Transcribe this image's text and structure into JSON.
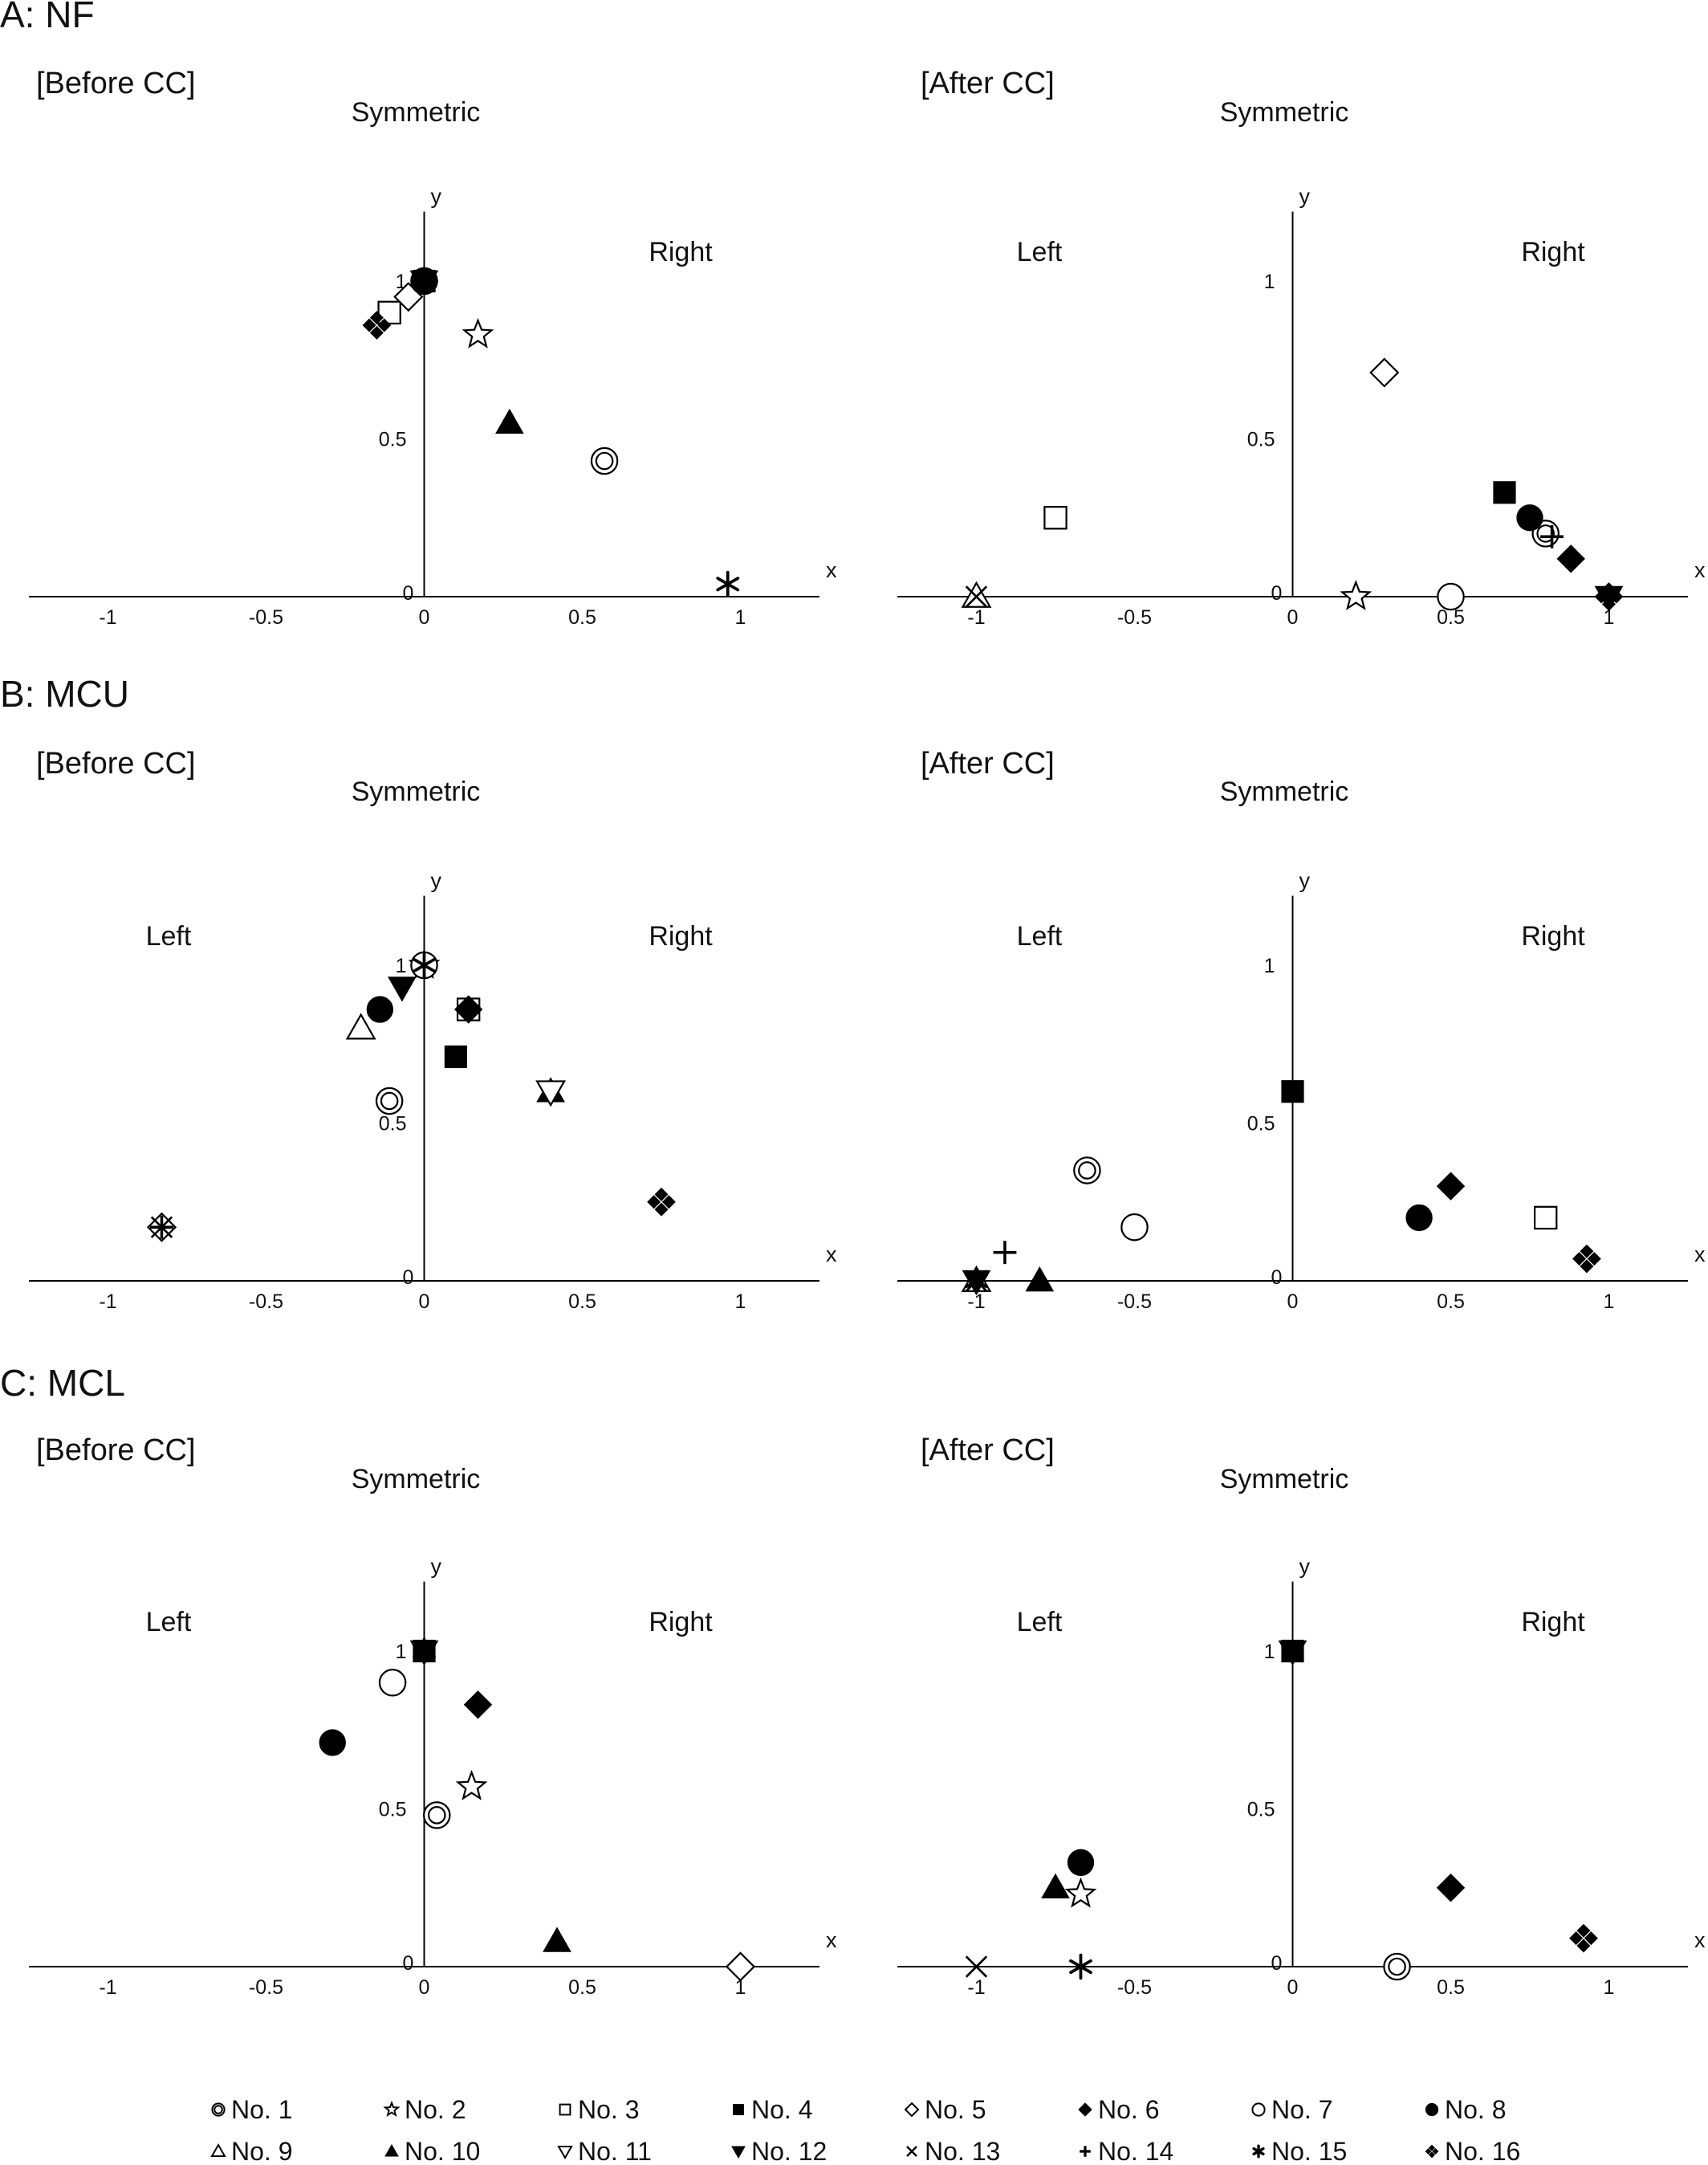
{
  "figure": {
    "sections": [
      {
        "title": "A: NF",
        "before_label": "[Before CC]",
        "after_label": "[After CC]"
      },
      {
        "title": "B: MCU",
        "before_label": "[Before CC]",
        "after_label": "[After CC]"
      },
      {
        "title": "C: MCL",
        "before_label": "[Before CC]",
        "after_label": "[After CC]"
      }
    ]
  },
  "legend": {
    "items": [
      {
        "label": "No. 1",
        "symbol": "double-circle"
      },
      {
        "label": "No. 2",
        "symbol": "open-star"
      },
      {
        "label": "No. 3",
        "symbol": "open-square"
      },
      {
        "label": "No. 4",
        "symbol": "filled-square"
      },
      {
        "label": "No. 5",
        "symbol": "open-diamond"
      },
      {
        "label": "No. 6",
        "symbol": "filled-diamond"
      },
      {
        "label": "No. 7",
        "symbol": "open-circle"
      },
      {
        "label": "No. 8",
        "symbol": "filled-circle"
      },
      {
        "label": "No. 9",
        "symbol": "open-triangle"
      },
      {
        "label": "No. 10",
        "symbol": "filled-triangle"
      },
      {
        "label": "No. 11",
        "symbol": "open-triangle-down"
      },
      {
        "label": "No. 12",
        "symbol": "filled-triangle-down"
      },
      {
        "label": "No. 13",
        "symbol": "x-cross"
      },
      {
        "label": "No. 14",
        "symbol": "plus"
      },
      {
        "label": "No. 15",
        "symbol": "asterisk"
      },
      {
        "label": "No. 16",
        "symbol": "four-diamonds"
      }
    ]
  },
  "chart_data": [
    {
      "type": "scatter",
      "section": "A: NF",
      "panel": "[Before CC]",
      "xlabel": "x",
      "ylabel": "y",
      "xlim": [
        -1.25,
        1.25
      ],
      "ylim": [
        0,
        1.25
      ],
      "x_ticks": [
        "-1",
        "-0.5",
        "0",
        "0.5",
        "1"
      ],
      "y_ticks": [
        "0",
        "0.5",
        "1"
      ],
      "region_labels": [
        "Symmetric",
        "Right"
      ],
      "points": [
        {
          "id": 1,
          "x": 0.57,
          "y": 0.43
        },
        {
          "id": 2,
          "x": 0.17,
          "y": 0.83
        },
        {
          "id": 3,
          "x": -0.11,
          "y": 0.9
        },
        {
          "id": 4,
          "x": 0.0,
          "y": 1.0
        },
        {
          "id": 5,
          "x": -0.05,
          "y": 0.95
        },
        {
          "id": 6,
          "x": 0.0,
          "y": 1.0
        },
        {
          "id": 7,
          "x": 0.0,
          "y": 1.0
        },
        {
          "id": 8,
          "x": 0.0,
          "y": 1.0
        },
        {
          "id": 10,
          "x": 0.27,
          "y": 0.55
        },
        {
          "id": 12,
          "x": 0.0,
          "y": 1.0
        },
        {
          "id": 15,
          "x": 0.96,
          "y": 0.04
        },
        {
          "id": 16,
          "x": -0.15,
          "y": 0.86
        }
      ]
    },
    {
      "type": "scatter",
      "section": "A: NF",
      "panel": "[After CC]",
      "xlabel": "x",
      "ylabel": "y",
      "xlim": [
        -1.25,
        1.25
      ],
      "ylim": [
        0,
        1.25
      ],
      "x_ticks": [
        "-1",
        "-0.5",
        "0",
        "0.5",
        "1"
      ],
      "y_ticks": [
        "0",
        "0.5",
        "1"
      ],
      "region_labels": [
        "Symmetric",
        "Left",
        "Right"
      ],
      "points": [
        {
          "id": 1,
          "x": 0.8,
          "y": 0.2
        },
        {
          "id": 2,
          "x": 0.2,
          "y": 0.0
        },
        {
          "id": 3,
          "x": -0.75,
          "y": 0.25
        },
        {
          "id": 4,
          "x": 0.67,
          "y": 0.33
        },
        {
          "id": 5,
          "x": 0.29,
          "y": 0.71
        },
        {
          "id": 6,
          "x": 0.88,
          "y": 0.12
        },
        {
          "id": 7,
          "x": 0.5,
          "y": 0.0
        },
        {
          "id": 8,
          "x": 0.75,
          "y": 0.25
        },
        {
          "id": 9,
          "x": -1.0,
          "y": 0.0
        },
        {
          "id": 12,
          "x": 1.0,
          "y": 0.0
        },
        {
          "id": 13,
          "x": -1.0,
          "y": 0.0
        },
        {
          "id": 14,
          "x": 0.82,
          "y": 0.19
        },
        {
          "id": 16,
          "x": 1.0,
          "y": 0.0
        }
      ]
    },
    {
      "type": "scatter",
      "section": "B: MCU",
      "panel": "[Before CC]",
      "xlabel": "x",
      "ylabel": "y",
      "xlim": [
        -1.25,
        1.25
      ],
      "ylim": [
        0,
        1.25
      ],
      "x_ticks": [
        "-1",
        "-0.5",
        "0",
        "0.5",
        "1"
      ],
      "y_ticks": [
        "0",
        "0.5",
        "1"
      ],
      "region_labels": [
        "Symmetric",
        "Left",
        "Right"
      ],
      "points": [
        {
          "id": 1,
          "x": -0.11,
          "y": 0.57
        },
        {
          "id": 2,
          "x": 0.0,
          "y": 1.0
        },
        {
          "id": 3,
          "x": 0.14,
          "y": 0.86
        },
        {
          "id": 4,
          "x": 0.1,
          "y": 0.71
        },
        {
          "id": 5,
          "x": -0.83,
          "y": 0.17
        },
        {
          "id": 6,
          "x": 0.14,
          "y": 0.86
        },
        {
          "id": 7,
          "x": 0.0,
          "y": 1.0
        },
        {
          "id": 8,
          "x": -0.14,
          "y": 0.86
        },
        {
          "id": 9,
          "x": -0.2,
          "y": 0.8
        },
        {
          "id": 10,
          "x": 0.4,
          "y": 0.6
        },
        {
          "id": 11,
          "x": 0.4,
          "y": 0.6
        },
        {
          "id": 12,
          "x": -0.07,
          "y": 0.93
        },
        {
          "id": 13,
          "x": -0.83,
          "y": 0.17
        },
        {
          "id": 14,
          "x": -0.83,
          "y": 0.17
        },
        {
          "id": 15,
          "x": 0.0,
          "y": 1.0
        },
        {
          "id": 16,
          "x": 0.75,
          "y": 0.25
        }
      ]
    },
    {
      "type": "scatter",
      "section": "B: MCU",
      "panel": "[After CC]",
      "xlabel": "x",
      "ylabel": "y",
      "xlim": [
        -1.25,
        1.25
      ],
      "ylim": [
        0,
        1.25
      ],
      "x_ticks": [
        "-1",
        "-0.5",
        "0",
        "0.5",
        "1"
      ],
      "y_ticks": [
        "0",
        "0.5",
        "1"
      ],
      "region_labels": [
        "Symmetric",
        "Left",
        "Right"
      ],
      "points": [
        {
          "id": 1,
          "x": -0.65,
          "y": 0.35
        },
        {
          "id": 3,
          "x": 0.8,
          "y": 0.2
        },
        {
          "id": 4,
          "x": 0.0,
          "y": 0.6
        },
        {
          "id": 6,
          "x": 0.5,
          "y": 0.3
        },
        {
          "id": 7,
          "x": -0.5,
          "y": 0.17
        },
        {
          "id": 8,
          "x": 0.4,
          "y": 0.2
        },
        {
          "id": 9,
          "x": -1.0,
          "y": 0.0
        },
        {
          "id": 10,
          "x": -0.8,
          "y": 0.0
        },
        {
          "id": 12,
          "x": -1.0,
          "y": 0.0
        },
        {
          "id": 13,
          "x": -1.0,
          "y": 0.0
        },
        {
          "id": 14,
          "x": -0.91,
          "y": 0.09
        },
        {
          "id": 15,
          "x": -1.0,
          "y": 0.0
        },
        {
          "id": 16,
          "x": 0.93,
          "y": 0.07
        }
      ]
    },
    {
      "type": "scatter",
      "section": "C: MCL",
      "panel": "[Before CC]",
      "xlabel": "x",
      "ylabel": "y",
      "xlim": [
        -1.25,
        1.25
      ],
      "ylim": [
        0,
        1.25
      ],
      "x_ticks": [
        "-1",
        "-0.5",
        "0",
        "0.5",
        "1"
      ],
      "y_ticks": [
        "0",
        "0.5",
        "1"
      ],
      "region_labels": [
        "Symmetric",
        "Left",
        "Right"
      ],
      "points": [
        {
          "id": 1,
          "x": 0.04,
          "y": 0.48
        },
        {
          "id": 2,
          "x": 0.15,
          "y": 0.57
        },
        {
          "id": 4,
          "x": 0.0,
          "y": 1.0
        },
        {
          "id": 5,
          "x": 1.0,
          "y": 0.0
        },
        {
          "id": 6,
          "x": 0.17,
          "y": 0.83
        },
        {
          "id": 7,
          "x": -0.1,
          "y": 0.9
        },
        {
          "id": 8,
          "x": -0.29,
          "y": 0.71
        },
        {
          "id": 10,
          "x": 0.42,
          "y": 0.08
        },
        {
          "id": 12,
          "x": 0.0,
          "y": 1.0
        },
        {
          "id": 15,
          "x": 0.0,
          "y": 1.0
        }
      ]
    },
    {
      "type": "scatter",
      "section": "C: MCL",
      "panel": "[After CC]",
      "xlabel": "x",
      "ylabel": "y",
      "xlim": [
        -1.25,
        1.25
      ],
      "ylim": [
        0,
        1.25
      ],
      "x_ticks": [
        "-1",
        "-0.5",
        "0",
        "0.5",
        "1"
      ],
      "y_ticks": [
        "0",
        "0.5",
        "1"
      ],
      "region_labels": [
        "Symmetric",
        "Left",
        "Right"
      ],
      "points": [
        {
          "id": 1,
          "x": 0.33,
          "y": 0.0
        },
        {
          "id": 2,
          "x": -0.67,
          "y": 0.23
        },
        {
          "id": 4,
          "x": 0.0,
          "y": 1.0
        },
        {
          "id": 6,
          "x": 0.5,
          "y": 0.25
        },
        {
          "id": 8,
          "x": -0.67,
          "y": 0.33
        },
        {
          "id": 10,
          "x": -0.75,
          "y": 0.25
        },
        {
          "id": 12,
          "x": 0.0,
          "y": 1.0
        },
        {
          "id": 13,
          "x": -1.0,
          "y": 0.0
        },
        {
          "id": 15,
          "x": -0.67,
          "y": 0.0
        },
        {
          "id": 16,
          "x": 0.92,
          "y": 0.09
        }
      ]
    }
  ]
}
